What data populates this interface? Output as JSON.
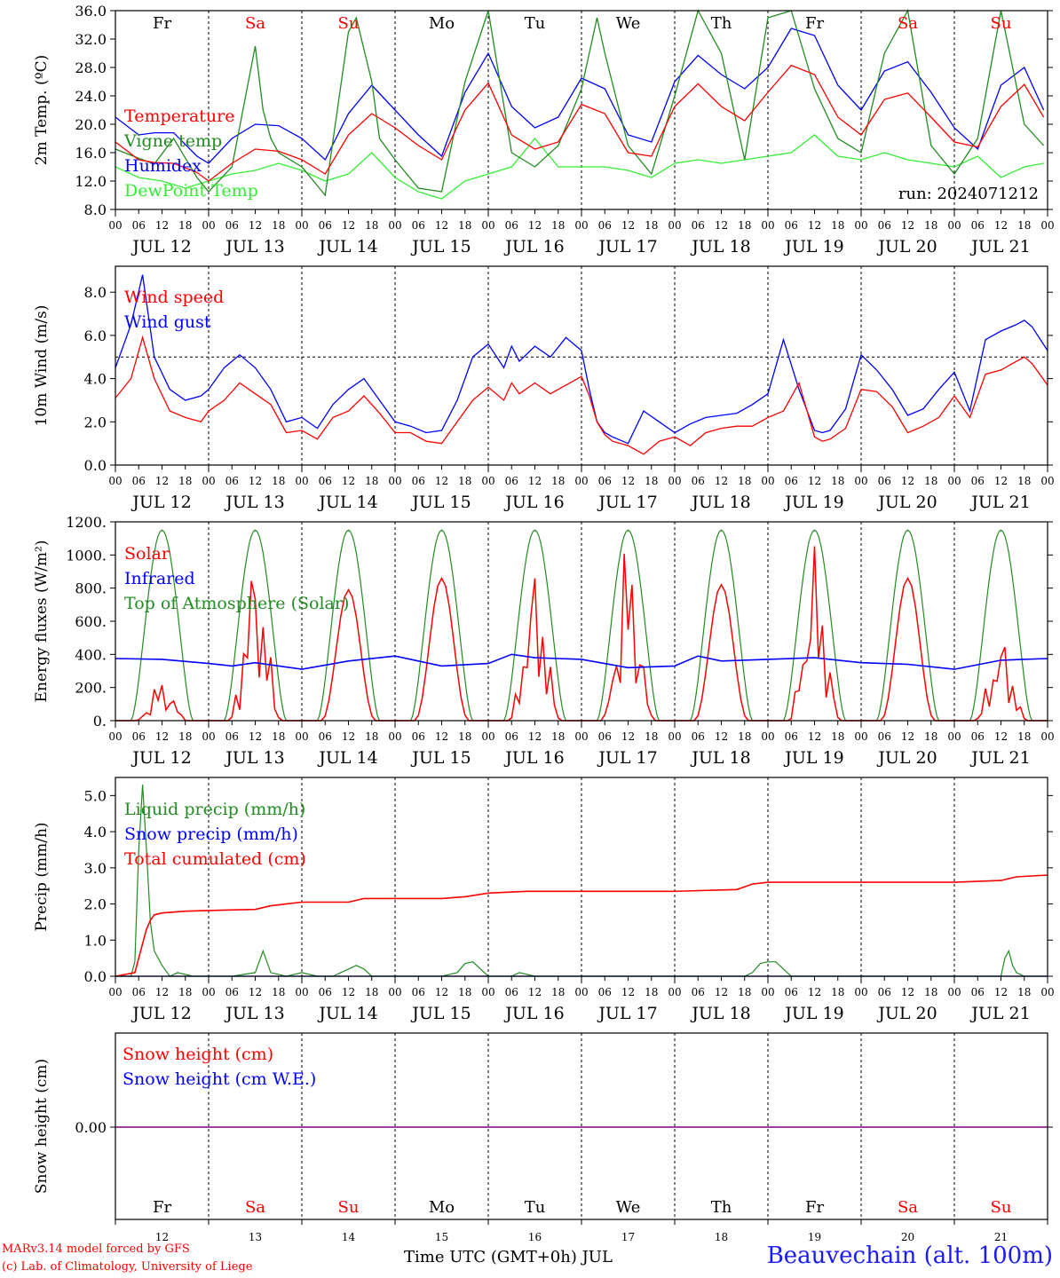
{
  "footer": {
    "model_line1": "MARv3.14 model forced by GFS",
    "model_line2": "(c) Lab. of Climatology, University of Liege",
    "time_axis_label": "Time UTC (GMT+0h) JUL",
    "station": "Beauvechain (alt. 100m)"
  },
  "days": {
    "dates": [
      "JUL 12",
      "JUL 13",
      "JUL 14",
      "JUL 15",
      "JUL 16",
      "JUL 17",
      "JUL 18",
      "JUL 19",
      "JUL 20",
      "JUL 21"
    ],
    "weekdays": [
      "Fr",
      "Sa",
      "Su",
      "Mo",
      "Tu",
      "We",
      "Th",
      "Fr",
      "Sa",
      "Su"
    ],
    "weekend_color": "#ff0000",
    "weekday_color": "#000000",
    "day_numbers": [
      "12",
      "13",
      "14",
      "15",
      "16",
      "17",
      "18",
      "19",
      "20",
      "21"
    ],
    "hour_ticks": [
      "00",
      "06",
      "12",
      "18"
    ],
    "final_tick": "00"
  },
  "chart_data": [
    {
      "type": "line",
      "ylabel": "2m Temp. (ºC)",
      "ylim": [
        8,
        36
      ],
      "yticks": [
        "8.0",
        "12.0",
        "16.0",
        "20.0",
        "24.0",
        "28.0",
        "32.0",
        "36.0"
      ],
      "annotation": "run: 2024071212",
      "x_unit": "hours since JUL 12 00 UTC",
      "series": [
        {
          "name": "Temperature",
          "color": "#ff0000",
          "x": [
            0,
            6,
            10,
            15,
            21,
            24,
            30,
            36,
            42,
            48,
            54,
            60,
            66,
            72,
            78,
            84,
            90,
            96,
            102,
            108,
            114,
            120,
            126,
            132,
            138,
            144,
            150,
            156,
            162,
            168,
            174,
            180,
            186,
            192,
            198,
            204,
            210,
            216,
            222,
            228,
            234,
            239
          ],
          "y": [
            17.5,
            15.0,
            14.6,
            14.5,
            13.2,
            12.0,
            14.5,
            16.5,
            16.2,
            15.0,
            13.0,
            18.5,
            21.5,
            19.5,
            17.0,
            15.0,
            22.0,
            25.8,
            18.5,
            16.5,
            17.5,
            22.8,
            21.5,
            16.0,
            15.5,
            22.5,
            25.7,
            22.5,
            20.5,
            24.5,
            28.3,
            27.0,
            21.0,
            18.5,
            23.5,
            24.4,
            21.0,
            17.5,
            16.8,
            22.5,
            25.6,
            21.0
          ]
        },
        {
          "name": "Vigne temp",
          "color": "#228B22",
          "x": [
            0,
            6,
            10,
            15,
            21,
            24,
            30,
            36,
            38,
            40,
            42,
            48,
            54,
            60,
            62,
            66,
            68,
            72,
            78,
            84,
            90,
            96,
            102,
            108,
            114,
            120,
            124,
            126,
            132,
            138,
            144,
            150,
            156,
            162,
            168,
            174,
            180,
            186,
            192,
            198,
            204,
            210,
            216,
            222,
            228,
            234,
            239
          ],
          "y": [
            16.5,
            15.2,
            14.4,
            18.0,
            12.5,
            10.5,
            14.0,
            31.0,
            22.0,
            18.0,
            16.0,
            14.0,
            10.0,
            33.0,
            35.0,
            26.0,
            18.0,
            15.0,
            11.0,
            10.5,
            26.0,
            36.0,
            16.0,
            14.0,
            17.0,
            25.0,
            35.0,
            30.0,
            17.0,
            13.0,
            24.0,
            36.0,
            30.0,
            15.0,
            35.0,
            36.0,
            25.0,
            18.0,
            16.0,
            30.0,
            36.0,
            17.0,
            13.0,
            18.0,
            36.0,
            20.0,
            17.0
          ]
        },
        {
          "name": "Humidex",
          "color": "#0000ff",
          "x": [
            0,
            6,
            10,
            15,
            21,
            24,
            30,
            36,
            42,
            48,
            54,
            60,
            66,
            72,
            78,
            84,
            90,
            96,
            102,
            108,
            114,
            120,
            126,
            132,
            138,
            144,
            150,
            156,
            162,
            168,
            174,
            180,
            186,
            192,
            198,
            204,
            210,
            216,
            222,
            228,
            234,
            239
          ],
          "y": [
            21.0,
            18.5,
            18.8,
            18.8,
            15.5,
            14.5,
            18.0,
            20.0,
            19.8,
            18.0,
            15.0,
            21.5,
            25.5,
            22.0,
            18.5,
            15.5,
            24.5,
            30.0,
            22.5,
            19.5,
            21.0,
            26.5,
            25.0,
            18.5,
            17.5,
            26.0,
            29.7,
            27.0,
            25.0,
            28.0,
            33.5,
            32.5,
            25.5,
            22.0,
            27.5,
            28.8,
            24.5,
            19.5,
            16.5,
            25.5,
            28.0,
            22.0
          ]
        },
        {
          "name": "DewPoint Temp",
          "color": "#33ee33",
          "x": [
            0,
            6,
            12,
            18,
            24,
            30,
            36,
            42,
            48,
            54,
            60,
            66,
            72,
            78,
            84,
            90,
            96,
            102,
            108,
            114,
            120,
            126,
            132,
            138,
            144,
            150,
            156,
            162,
            168,
            174,
            180,
            186,
            192,
            198,
            204,
            210,
            216,
            222,
            228,
            234,
            239
          ],
          "y": [
            14.0,
            12.5,
            12.0,
            11.0,
            12.0,
            13.0,
            13.5,
            14.5,
            13.5,
            12.0,
            13.0,
            16.0,
            12.5,
            10.5,
            9.5,
            12.0,
            13.0,
            14.0,
            18.0,
            14.0,
            14.0,
            14.0,
            13.5,
            12.5,
            14.5,
            15.0,
            14.5,
            15.0,
            15.5,
            16.0,
            18.5,
            15.5,
            15.0,
            16.0,
            15.0,
            14.5,
            14.0,
            15.5,
            12.5,
            14.0,
            14.5
          ]
        }
      ]
    },
    {
      "type": "line",
      "ylabel": "10m Wind (m/s)",
      "ylim": [
        0,
        9.2
      ],
      "yticks": [
        "0.0",
        "2.0",
        "4.0",
        "6.0",
        "8.0"
      ],
      "reference_line": 5.0,
      "series": [
        {
          "name": "Wind speed",
          "color": "#ff0000",
          "x": [
            0,
            4,
            7,
            10,
            14,
            18,
            22,
            24,
            28,
            32,
            36,
            40,
            44,
            48,
            52,
            56,
            60,
            64,
            68,
            72,
            76,
            80,
            84,
            88,
            92,
            96,
            100,
            102,
            104,
            108,
            112,
            116,
            120,
            122,
            124,
            126,
            128,
            132,
            136,
            140,
            144,
            148,
            152,
            156,
            160,
            164,
            168,
            172,
            176,
            180,
            182,
            184,
            188,
            192,
            196,
            200,
            204,
            208,
            212,
            216,
            220,
            224,
            228,
            232,
            234,
            236,
            240
          ],
          "y": [
            3.1,
            4.0,
            5.9,
            4.0,
            2.5,
            2.2,
            2.0,
            2.5,
            3.0,
            3.8,
            3.3,
            2.8,
            1.5,
            1.6,
            1.2,
            2.2,
            2.5,
            3.2,
            2.4,
            1.5,
            1.5,
            1.1,
            1.0,
            2.0,
            3.0,
            3.6,
            3.0,
            3.8,
            3.3,
            3.8,
            3.3,
            3.7,
            4.1,
            3.2,
            2.0,
            1.4,
            1.1,
            0.9,
            0.5,
            1.1,
            1.3,
            0.9,
            1.5,
            1.7,
            1.8,
            1.8,
            2.2,
            2.5,
            3.8,
            1.3,
            1.1,
            1.2,
            1.7,
            3.5,
            3.4,
            2.7,
            1.5,
            1.8,
            2.2,
            3.2,
            2.2,
            4.2,
            4.4,
            4.8,
            5.0,
            4.7,
            3.7
          ]
        },
        {
          "name": "Wind gust",
          "color": "#0000ff",
          "x": [
            0,
            4,
            7,
            10,
            14,
            18,
            22,
            24,
            28,
            32,
            36,
            40,
            44,
            48,
            52,
            56,
            60,
            64,
            68,
            72,
            76,
            80,
            84,
            88,
            92,
            96,
            100,
            102,
            104,
            108,
            112,
            116,
            120,
            122,
            124,
            126,
            128,
            132,
            136,
            140,
            144,
            148,
            152,
            156,
            160,
            164,
            168,
            172,
            176,
            180,
            182,
            184,
            188,
            192,
            196,
            200,
            204,
            208,
            212,
            216,
            220,
            224,
            228,
            232,
            234,
            236,
            240
          ],
          "y": [
            4.5,
            6.5,
            8.8,
            5.0,
            3.5,
            3.0,
            3.2,
            3.5,
            4.5,
            5.1,
            4.5,
            3.5,
            2.0,
            2.2,
            1.7,
            2.8,
            3.5,
            4.0,
            3.0,
            2.0,
            1.8,
            1.5,
            1.6,
            3.0,
            5.0,
            5.6,
            4.5,
            5.5,
            4.8,
            5.5,
            5.0,
            5.9,
            5.3,
            3.5,
            2.0,
            1.5,
            1.3,
            1.0,
            2.5,
            2.0,
            1.5,
            1.9,
            2.2,
            2.3,
            2.4,
            2.8,
            3.3,
            5.8,
            3.5,
            1.6,
            1.5,
            1.6,
            2.6,
            5.1,
            4.4,
            3.5,
            2.3,
            2.6,
            3.5,
            4.3,
            2.5,
            5.8,
            6.2,
            6.5,
            6.7,
            6.4,
            5.3
          ]
        }
      ]
    },
    {
      "type": "line",
      "ylabel": "Energy fluxes (W/m²)",
      "ylim": [
        0,
        1200
      ],
      "yticks": [
        "0.",
        "200.",
        "400.",
        "600.",
        "800.",
        "1000.",
        "1200."
      ],
      "series": [
        {
          "name": "Solar",
          "color": "#ff0000",
          "daily_peaks": [
            200,
            820,
            790,
            860,
            750,
            860,
            820,
            820,
            860,
            420
          ]
        },
        {
          "name": "Infrared",
          "color": "#0000ff",
          "x": [
            0,
            12,
            24,
            30,
            36,
            48,
            60,
            72,
            84,
            96,
            102,
            108,
            120,
            132,
            144,
            150,
            156,
            168,
            180,
            192,
            204,
            216,
            228,
            240
          ],
          "y": [
            375,
            370,
            345,
            330,
            350,
            310,
            360,
            390,
            330,
            345,
            400,
            380,
            370,
            320,
            330,
            390,
            360,
            370,
            380,
            350,
            340,
            310,
            365,
            375
          ]
        },
        {
          "name": "Top of Atmosphere (Solar)",
          "color": "#228B22",
          "daily_peak": 1150
        }
      ]
    },
    {
      "type": "line",
      "ylabel": "Precip (mm/h)",
      "ylim": [
        0,
        5.5
      ],
      "yticks": [
        "0.0",
        "1.0",
        "2.0",
        "3.0",
        "4.0",
        "5.0"
      ],
      "series": [
        {
          "name": "Liquid precip (mm/h)",
          "color": "#228B22",
          "x": [
            0,
            4,
            5,
            6,
            7,
            8,
            9,
            10,
            12,
            14,
            16,
            20,
            24,
            30,
            36,
            38,
            40,
            44,
            48,
            52,
            56,
            60,
            62,
            64,
            66,
            70,
            84,
            88,
            90,
            92,
            96,
            102,
            104,
            108,
            110,
            112,
            116,
            120,
            132,
            144,
            162,
            164,
            166,
            168,
            170,
            172,
            174,
            180,
            192,
            204,
            216,
            228,
            229,
            230,
            231,
            232,
            234,
            236,
            240
          ],
          "y": [
            0,
            0,
            0.4,
            3.5,
            5.3,
            3.5,
            1.5,
            0.7,
            0.3,
            0,
            0.1,
            0,
            0,
            0,
            0.1,
            0.7,
            0.1,
            0,
            0.1,
            0,
            0,
            0.2,
            0.3,
            0.2,
            0,
            0,
            0,
            0.1,
            0.35,
            0.4,
            0,
            0,
            0.1,
            0,
            0,
            0,
            0,
            0,
            0,
            0,
            0,
            0.1,
            0.35,
            0.4,
            0.4,
            0.2,
            0,
            0,
            0,
            0,
            0,
            0,
            0.5,
            0.7,
            0.3,
            0.1,
            0,
            0,
            0
          ]
        },
        {
          "name": "Snow precip (mm/h)",
          "color": "#0000ff",
          "x": [
            0,
            240
          ],
          "y": [
            0,
            0
          ]
        },
        {
          "name": "Total cumulated (cm)",
          "color": "#ff0000",
          "x": [
            0,
            5,
            7,
            8,
            9,
            10,
            12,
            18,
            24,
            36,
            40,
            48,
            60,
            64,
            72,
            84,
            90,
            96,
            102,
            106,
            120,
            144,
            160,
            164,
            168,
            180,
            192,
            216,
            228,
            232,
            240
          ],
          "y": [
            0,
            0.1,
            0.9,
            1.3,
            1.55,
            1.7,
            1.75,
            1.8,
            1.82,
            1.85,
            1.95,
            2.05,
            2.05,
            2.15,
            2.15,
            2.15,
            2.2,
            2.3,
            2.33,
            2.35,
            2.35,
            2.35,
            2.4,
            2.55,
            2.6,
            2.6,
            2.6,
            2.6,
            2.65,
            2.75,
            2.8
          ]
        }
      ]
    },
    {
      "type": "line",
      "ylabel": "Snow height (cm)",
      "yticks": [
        "0.00"
      ],
      "series": [
        {
          "name": "Snow height (cm)",
          "color": "#ff0000",
          "x": [
            0,
            240
          ],
          "y": [
            0,
            0
          ]
        },
        {
          "name": "Snow height (cm W.E.)",
          "color": "#0000ff",
          "x": [
            0,
            240
          ],
          "y": [
            0,
            0
          ]
        }
      ]
    }
  ]
}
